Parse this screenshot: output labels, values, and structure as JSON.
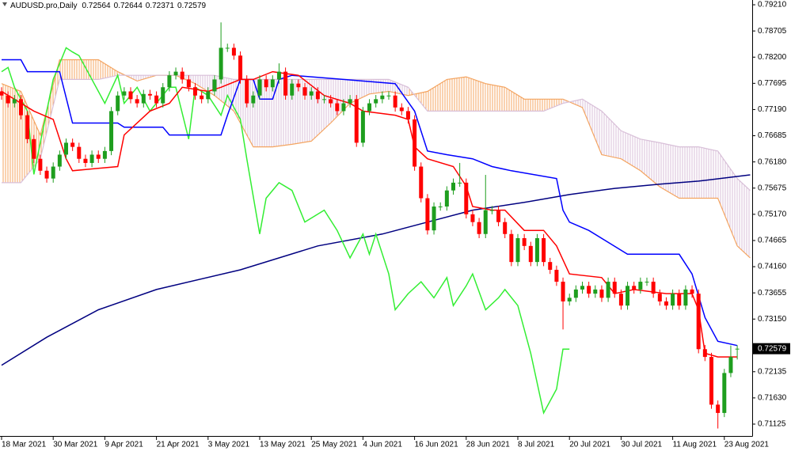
{
  "chart_data": {
    "type": "candlestick",
    "title": "AUDUSD.pro,Daily",
    "up_color": "#1e9e1e",
    "down_color": "#ff0000",
    "xlim": [
      0,
      116
    ],
    "ylim": [
      0.70896,
      0.79302
    ],
    "xticks": [
      {
        "value": 0,
        "label": "18 Mar 2021"
      },
      {
        "value": 8,
        "label": "30 Mar 2021"
      },
      {
        "value": 16,
        "label": "9 Apr 2021"
      },
      {
        "value": 24,
        "label": "21 Apr 2021"
      },
      {
        "value": 32,
        "label": "3 May 2021"
      },
      {
        "value": 40,
        "label": "13 May 2021"
      },
      {
        "value": 48,
        "label": "25 May 2021"
      },
      {
        "value": 56,
        "label": "4 Jun 2021"
      },
      {
        "value": 64,
        "label": "16 Jun 2021"
      },
      {
        "value": 72,
        "label": "28 Jun 2021"
      },
      {
        "value": 80,
        "label": "8 Jul 2021"
      },
      {
        "value": 88,
        "label": "20 Jul 2021"
      },
      {
        "value": 96,
        "label": "30 Jul 2021"
      },
      {
        "value": 104,
        "label": "11 Aug 2021"
      },
      {
        "value": 112,
        "label": "23 Aug 2021"
      }
    ],
    "yticks": [
      {
        "value": 0.7921,
        "label": "0.79210"
      },
      0.78705,
      {
        "value": 0.782,
        "label": "0.78200"
      },
      0.77695,
      {
        "value": 0.7719,
        "label": "0.77190"
      },
      0.76685,
      {
        "value": 0.7618,
        "label": "0.76180"
      },
      0.75675,
      {
        "value": 0.7517,
        "label": "0.75170"
      },
      0.74665,
      {
        "value": 0.7416,
        "label": "0.74160"
      },
      0.73655,
      {
        "value": 0.7315,
        "label": "0.73150"
      },
      0.72135,
      {
        "value": 0.7163,
        "label": "0.71630"
      },
      0.71125
    ],
    "open": [
      0.7754,
      0.7746,
      0.7731,
      0.7739,
      0.7708,
      0.7662,
      0.7624,
      0.7601,
      0.7586,
      0.7609,
      0.7632,
      0.7655,
      0.7647,
      0.7624,
      0.7616,
      0.7632,
      0.7624,
      0.7639,
      0.7716,
      0.7746,
      0.7754,
      0.7739,
      0.7731,
      0.7749,
      0.7746,
      0.7731,
      0.7762,
      0.7785,
      0.7792,
      0.7777,
      0.7762,
      0.7746,
      0.7739,
      0.7754,
      0.7777,
      0.7838,
      0.7838,
      0.7823,
      0.7777,
      0.7731,
      0.7746,
      0.7777,
      0.7762,
      0.7777,
      0.7792,
      0.7746,
      0.7769,
      0.7762,
      0.7746,
      0.7754,
      0.7739,
      0.7739,
      0.7731,
      0.7716,
      0.7731,
      0.7739,
      0.7655,
      0.7716,
      0.7731,
      0.7739,
      0.7746,
      0.7746,
      0.7723,
      0.7716,
      0.77,
      0.7609,
      0.7548,
      0.7486,
      0.7532,
      0.7532,
      0.7563,
      0.7578,
      0.7578,
      0.7517,
      0.7502,
      0.7479,
      0.7525,
      0.7525,
      0.7502,
      0.7479,
      0.7425,
      0.7471,
      0.7456,
      0.7425,
      0.7471,
      0.7425,
      0.741,
      0.7387,
      0.7349,
      0.7356,
      0.7372,
      0.7379,
      0.7364,
      0.7372,
      0.7356,
      0.7387,
      0.7364,
      0.7341,
      0.7379,
      0.7372,
      0.7387,
      0.7387,
      0.7364,
      0.7349,
      0.7341,
      0.7364,
      0.7341,
      0.7372,
      0.7364,
      0.7257,
      0.7242,
      0.715,
      0.7134,
      0.7211,
      0.72564
    ],
    "high": [
      0.7762,
      0.7754,
      0.7747,
      0.7747,
      0.7716,
      0.767,
      0.7632,
      0.7609,
      0.7617,
      0.764,
      0.7663,
      0.7663,
      0.7655,
      0.7632,
      0.764,
      0.764,
      0.7647,
      0.7724,
      0.7754,
      0.7762,
      0.7762,
      0.7747,
      0.7757,
      0.7757,
      0.7754,
      0.777,
      0.7793,
      0.78,
      0.78,
      0.7785,
      0.777,
      0.7754,
      0.7762,
      0.7785,
      0.7887,
      0.7846,
      0.7846,
      0.7831,
      0.7785,
      0.7754,
      0.7785,
      0.7785,
      0.7785,
      0.7808,
      0.78,
      0.7777,
      0.7777,
      0.777,
      0.7762,
      0.7762,
      0.7747,
      0.7747,
      0.7739,
      0.7739,
      0.7747,
      0.7747,
      0.7724,
      0.7739,
      0.7747,
      0.7754,
      0.7754,
      0.7754,
      0.7731,
      0.7724,
      0.7708,
      0.7617,
      0.7556,
      0.754,
      0.754,
      0.7571,
      0.7586,
      0.7616,
      0.7586,
      0.7525,
      0.751,
      0.7593,
      0.7533,
      0.7533,
      0.751,
      0.7487,
      0.7479,
      0.7479,
      0.7464,
      0.7479,
      0.7479,
      0.7433,
      0.7418,
      0.7395,
      0.7364,
      0.738,
      0.7387,
      0.7387,
      0.738,
      0.738,
      0.7395,
      0.7395,
      0.7372,
      0.7387,
      0.7387,
      0.7395,
      0.7395,
      0.7395,
      0.7372,
      0.7357,
      0.7372,
      0.7372,
      0.738,
      0.738,
      0.7372,
      0.7265,
      0.725,
      0.7158,
      0.7219,
      0.7264,
      0.72644
    ],
    "low": [
      0.7738,
      0.7723,
      0.7723,
      0.77,
      0.7654,
      0.7616,
      0.7593,
      0.7578,
      0.7578,
      0.7601,
      0.7624,
      0.7639,
      0.7616,
      0.7608,
      0.7608,
      0.7616,
      0.7616,
      0.7631,
      0.7708,
      0.7738,
      0.7731,
      0.7723,
      0.7723,
      0.7738,
      0.7723,
      0.7723,
      0.7754,
      0.7777,
      0.7769,
      0.7754,
      0.7738,
      0.7731,
      0.7731,
      0.7746,
      0.7769,
      0.783,
      0.7815,
      0.7769,
      0.7723,
      0.7723,
      0.7738,
      0.7754,
      0.7754,
      0.7769,
      0.7738,
      0.7738,
      0.7754,
      0.7738,
      0.7738,
      0.7731,
      0.7731,
      0.7723,
      0.7708,
      0.7708,
      0.7723,
      0.7647,
      0.7647,
      0.7708,
      0.7723,
      0.7731,
      0.7738,
      0.7715,
      0.7708,
      0.7692,
      0.7601,
      0.754,
      0.7478,
      0.7478,
      0.7524,
      0.7524,
      0.7555,
      0.757,
      0.7509,
      0.7494,
      0.7471,
      0.7471,
      0.7517,
      0.7494,
      0.7471,
      0.7417,
      0.7417,
      0.7448,
      0.7417,
      0.7417,
      0.7417,
      0.7402,
      0.7379,
      0.7295,
      0.7341,
      0.7348,
      0.7364,
      0.7356,
      0.7356,
      0.7348,
      0.7348,
      0.7356,
      0.7333,
      0.7333,
      0.7364,
      0.7364,
      0.7379,
      0.7356,
      0.7341,
      0.7333,
      0.7333,
      0.7333,
      0.7333,
      0.7356,
      0.7249,
      0.7234,
      0.7142,
      0.7104,
      0.7126,
      0.7203,
      0.72371
    ],
    "close": [
      0.7746,
      0.7731,
      0.7739,
      0.7708,
      0.7662,
      0.7624,
      0.7601,
      0.7586,
      0.7609,
      0.7632,
      0.7655,
      0.7647,
      0.7624,
      0.7616,
      0.7632,
      0.7624,
      0.7639,
      0.7716,
      0.7746,
      0.7754,
      0.7739,
      0.7731,
      0.7749,
      0.7746,
      0.7731,
      0.7762,
      0.7785,
      0.7792,
      0.7777,
      0.7762,
      0.7746,
      0.7739,
      0.7754,
      0.7777,
      0.7838,
      0.7838,
      0.7823,
      0.7777,
      0.7731,
      0.7746,
      0.7777,
      0.7762,
      0.7777,
      0.7792,
      0.7746,
      0.7769,
      0.7762,
      0.7746,
      0.7754,
      0.7739,
      0.7739,
      0.7731,
      0.7716,
      0.7731,
      0.7739,
      0.7655,
      0.7716,
      0.7731,
      0.7739,
      0.7746,
      0.7746,
      0.7723,
      0.7716,
      0.77,
      0.7609,
      0.7548,
      0.7486,
      0.7532,
      0.7532,
      0.7563,
      0.7578,
      0.7578,
      0.7517,
      0.7502,
      0.7479,
      0.7525,
      0.7525,
      0.7502,
      0.7479,
      0.7425,
      0.7471,
      0.7456,
      0.7425,
      0.7471,
      0.7425,
      0.741,
      0.7387,
      0.7349,
      0.7356,
      0.7372,
      0.7379,
      0.7364,
      0.7372,
      0.7356,
      0.7387,
      0.7364,
      0.7341,
      0.7379,
      0.7372,
      0.7387,
      0.7387,
      0.7364,
      0.7349,
      0.7341,
      0.7364,
      0.7341,
      0.7372,
      0.7364,
      0.7257,
      0.7242,
      0.715,
      0.7134,
      0.7211,
      0.7242,
      0.72579
    ],
    "cloud": {
      "up_color": "#f4a460",
      "down_color": "#d8bfd8",
      "x": [
        0,
        3,
        6,
        9,
        12,
        15,
        18,
        21,
        24,
        27,
        30,
        33,
        36,
        39,
        42,
        45,
        48,
        51,
        54,
        57,
        60,
        63,
        66,
        69,
        72,
        75,
        78,
        81,
        84,
        87,
        90,
        93,
        96,
        99,
        102,
        105,
        108,
        111,
        114,
        116
      ],
      "span_a": [
        0.7769,
        0.7754,
        0.767,
        0.7815,
        0.7815,
        0.7815,
        0.7792,
        0.7774,
        0.7785,
        0.7785,
        0.7769,
        0.7746,
        0.7716,
        0.7647,
        0.7647,
        0.7652,
        0.7658,
        0.7693,
        0.7731,
        0.7749,
        0.7754,
        0.7746,
        0.7754,
        0.7777,
        0.7782,
        0.7769,
        0.7762,
        0.7739,
        0.7739,
        0.7739,
        0.7723,
        0.7632,
        0.7624,
        0.7601,
        0.757,
        0.7548,
        0.7548,
        0.7548,
        0.7456,
        0.7433
      ],
      "span_b": [
        0.7578,
        0.7578,
        0.7624,
        0.7777,
        0.7777,
        0.7777,
        0.7785,
        0.7785,
        0.7785,
        0.7785,
        0.7785,
        0.7785,
        0.7777,
        0.7777,
        0.7777,
        0.7777,
        0.7777,
        0.7777,
        0.7777,
        0.7777,
        0.7777,
        0.7762,
        0.7716,
        0.7716,
        0.7716,
        0.7716,
        0.7716,
        0.7716,
        0.7716,
        0.7731,
        0.7739,
        0.7716,
        0.7678,
        0.7662,
        0.7655,
        0.7647,
        0.7647,
        0.7639,
        0.7586,
        0.7563
      ]
    },
    "lines": [
      {
        "color": "#000080",
        "x": [
          0,
          7,
          15,
          24,
          37,
          49,
          59,
          66,
          73,
          81,
          88,
          95,
          102,
          108,
          116
        ],
        "values": [
          0.7226,
          0.728,
          0.7333,
          0.7372,
          0.741,
          0.7456,
          0.7479,
          0.7502,
          0.7525,
          0.754,
          0.7555,
          0.7567,
          0.7575,
          0.7581,
          0.7593
        ]
      },
      {
        "color": "#33ee33",
        "x": [
          0,
          1,
          2,
          4,
          5,
          6,
          8,
          10,
          11,
          12,
          16,
          18,
          19,
          21,
          23,
          26,
          27,
          29,
          30,
          32,
          34,
          35,
          37,
          38,
          40,
          41,
          43,
          45,
          47,
          50,
          52,
          54,
          56,
          57,
          58,
          60,
          61,
          63,
          65,
          67,
          69,
          70,
          72,
          73,
          75,
          77,
          78,
          80,
          82,
          84,
          86,
          87,
          88
        ],
        "values": [
          0.7792,
          0.78,
          0.7762,
          0.7716,
          0.7594,
          0.7655,
          0.7777,
          0.7838,
          0.783,
          0.7823,
          0.7731,
          0.7785,
          0.7731,
          0.7762,
          0.7716,
          0.7762,
          0.7762,
          0.7662,
          0.7762,
          0.7746,
          0.7708,
          0.7746,
          0.77,
          0.7624,
          0.7479,
          0.7548,
          0.7578,
          0.7563,
          0.7502,
          0.7525,
          0.7486,
          0.7433,
          0.7479,
          0.744,
          0.7479,
          0.7402,
          0.7333,
          0.7364,
          0.7387,
          0.7356,
          0.7395,
          0.7341,
          0.7379,
          0.7402,
          0.7333,
          0.7356,
          0.7372,
          0.7341,
          0.7249,
          0.7134,
          0.718,
          0.7257,
          0.7257
        ]
      },
      {
        "color": "#0000ff",
        "x": [
          0,
          3,
          4,
          9,
          11,
          18,
          19,
          25,
          26,
          34,
          35,
          37,
          39,
          40,
          42,
          43,
          45,
          53,
          61,
          64,
          66,
          69,
          73,
          76,
          79,
          86,
          87,
          88,
          91,
          97,
          105,
          107,
          109,
          111,
          114
        ],
        "values": [
          0.7815,
          0.7815,
          0.7792,
          0.7792,
          0.7693,
          0.7693,
          0.7685,
          0.7685,
          0.767,
          0.767,
          0.7708,
          0.7777,
          0.7777,
          0.7739,
          0.7739,
          0.7777,
          0.7785,
          0.7777,
          0.7769,
          0.7716,
          0.7639,
          0.7632,
          0.7624,
          0.7609,
          0.7601,
          0.7586,
          0.7525,
          0.7502,
          0.7486,
          0.744,
          0.744,
          0.7402,
          0.7318,
          0.7272,
          0.7264
        ]
      },
      {
        "color": "#ff0000",
        "x": [
          0,
          5,
          8,
          10,
          11,
          18,
          19,
          23,
          26,
          28,
          32,
          34,
          37,
          39,
          42,
          46,
          50,
          54,
          56,
          61,
          63,
          64,
          66,
          70,
          72,
          73,
          76,
          78,
          81,
          84,
          86,
          88,
          93,
          95,
          98,
          103,
          107,
          108,
          109,
          111,
          114
        ],
        "values": [
          0.7754,
          0.7716,
          0.77,
          0.7624,
          0.7601,
          0.7609,
          0.767,
          0.7716,
          0.7731,
          0.7762,
          0.7754,
          0.7762,
          0.7777,
          0.7777,
          0.7792,
          0.7785,
          0.7746,
          0.7731,
          0.7716,
          0.7708,
          0.77,
          0.7647,
          0.7624,
          0.7609,
          0.7571,
          0.7532,
          0.7525,
          0.7525,
          0.7486,
          0.7486,
          0.7456,
          0.7402,
          0.7395,
          0.7364,
          0.7372,
          0.7364,
          0.7364,
          0.7333,
          0.7249,
          0.7242,
          0.7242
        ]
      }
    ]
  }
}
